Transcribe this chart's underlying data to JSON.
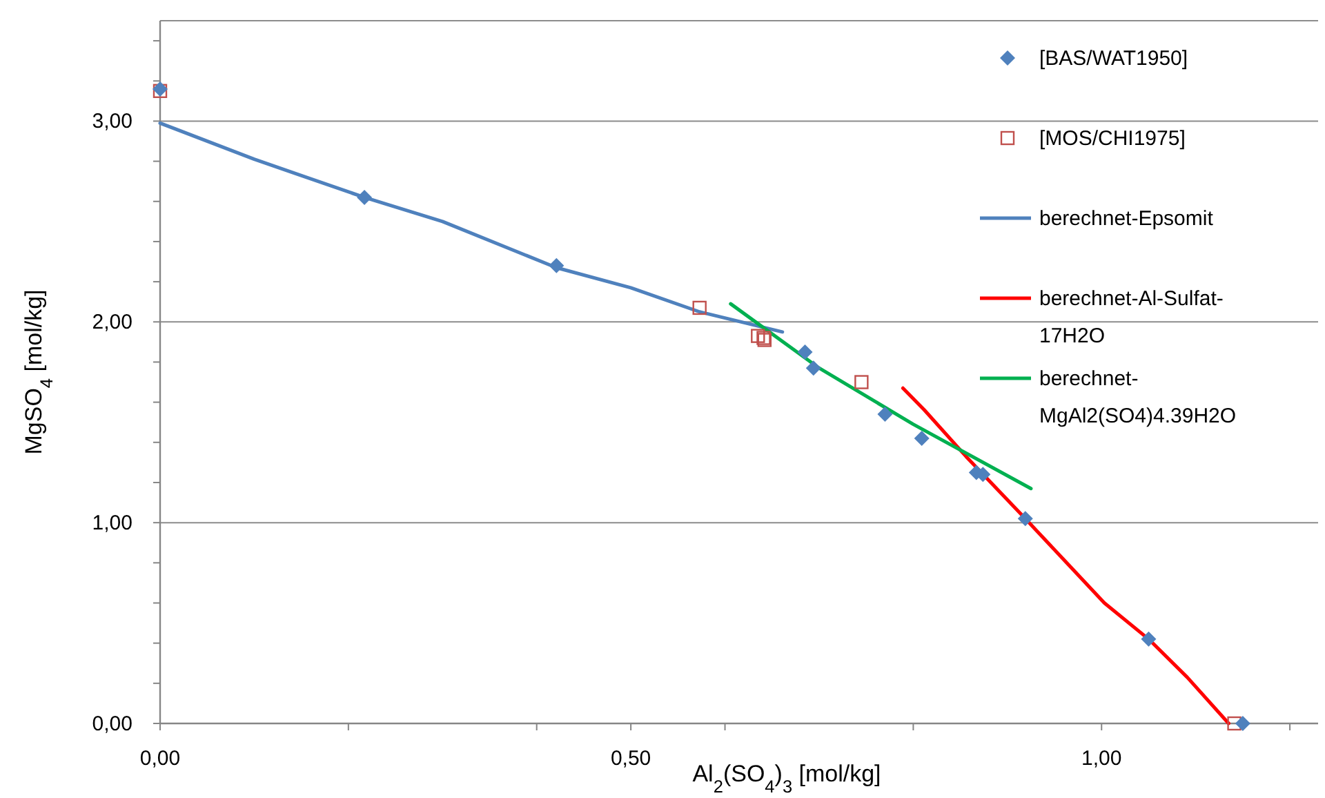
{
  "chart_data": {
    "type": "scatter",
    "xlabel": "Al$_{2}$(SO$_{4}$)$_{3}$ [mol/kg]",
    "ylabel": "MgSO$_{4}$ [mol/kg]",
    "xlim": [
      0,
      1.23
    ],
    "ylim": [
      0,
      3.5
    ],
    "xticks": [
      {
        "value": 0,
        "label": "0,00"
      },
      {
        "value": 0.2,
        "label": null
      },
      {
        "value": 0.4,
        "label": null
      },
      {
        "value": 0.5,
        "label": "0,50"
      },
      {
        "value": 0.6,
        "label": null
      },
      {
        "value": 0.8,
        "label": null
      },
      {
        "value": 1,
        "label": "1,00"
      },
      {
        "value": 1.2,
        "label": null
      }
    ],
    "yticks": [
      {
        "value": 0,
        "label": "0,00"
      },
      {
        "value": 0.2,
        "label": null
      },
      {
        "value": 0.4,
        "label": null
      },
      {
        "value": 0.6,
        "label": null
      },
      {
        "value": 0.8,
        "label": null
      },
      {
        "value": 1,
        "label": "1,00"
      },
      {
        "value": 1.2,
        "label": null
      },
      {
        "value": 1.4,
        "label": null
      },
      {
        "value": 1.6,
        "label": null
      },
      {
        "value": 1.8,
        "label": null
      },
      {
        "value": 2,
        "label": "2,00"
      },
      {
        "value": 2.2,
        "label": null
      },
      {
        "value": 2.4,
        "label": null
      },
      {
        "value": 2.6,
        "label": null
      },
      {
        "value": 2.8,
        "label": null
      },
      {
        "value": 3,
        "label": "3,00"
      },
      {
        "value": 3.2,
        "label": null
      },
      {
        "value": 3.4,
        "label": null
      }
    ],
    "grid": "y",
    "legend": "top right",
    "series": [
      {
        "name": "[BAS/WAT1950]",
        "marker": "diamond",
        "color": "#4f81bd",
        "x": [
          0,
          0.217,
          0.421,
          0.685,
          0.694,
          0.77,
          0.809,
          0.867,
          0.874,
          0.919,
          1.05,
          1.15
        ],
        "values": [
          3.16,
          2.62,
          2.28,
          1.85,
          1.77,
          1.54,
          1.42,
          1.25,
          1.24,
          1.02,
          0.42,
          0
        ]
      },
      {
        "name": "[MOS/CHI1975]",
        "marker": "square",
        "color": "#c0504d",
        "x": [
          0,
          0.573,
          0.635,
          0.641,
          0.642,
          0.745,
          1.141
        ],
        "values": [
          3.15,
          2.07,
          1.93,
          1.92,
          1.91,
          1.7,
          0
        ]
      },
      {
        "name": "berechnet-Epsomit",
        "type": "line",
        "marker": "none",
        "color": "#4f81bd",
        "x": [
          0,
          0.1,
          0.217,
          0.3,
          0.421,
          0.5,
          0.573,
          0.661
        ],
        "values": [
          2.99,
          2.81,
          2.62,
          2.5,
          2.27,
          2.17,
          2.05,
          1.95
        ]
      },
      {
        "name": "berechnet-Al-Sulfat-17H2O",
        "type": "line",
        "marker": "none",
        "color": "#ff0000",
        "x": [
          0.789,
          0.812,
          0.856,
          0.919,
          0.959,
          1.003,
          1.05,
          1.091,
          1.135
        ],
        "values": [
          1.67,
          1.56,
          1.33,
          1.02,
          0.82,
          0.6,
          0.42,
          0.23,
          0
        ]
      },
      {
        "name": "berechnet-MgAl2(SO4)4.39H2O",
        "type": "line",
        "marker": "none",
        "color": "#00b050",
        "x": [
          0.606,
          0.7,
          0.8,
          0.925
        ],
        "values": [
          2.09,
          1.77,
          1.49,
          1.17
        ]
      }
    ]
  }
}
